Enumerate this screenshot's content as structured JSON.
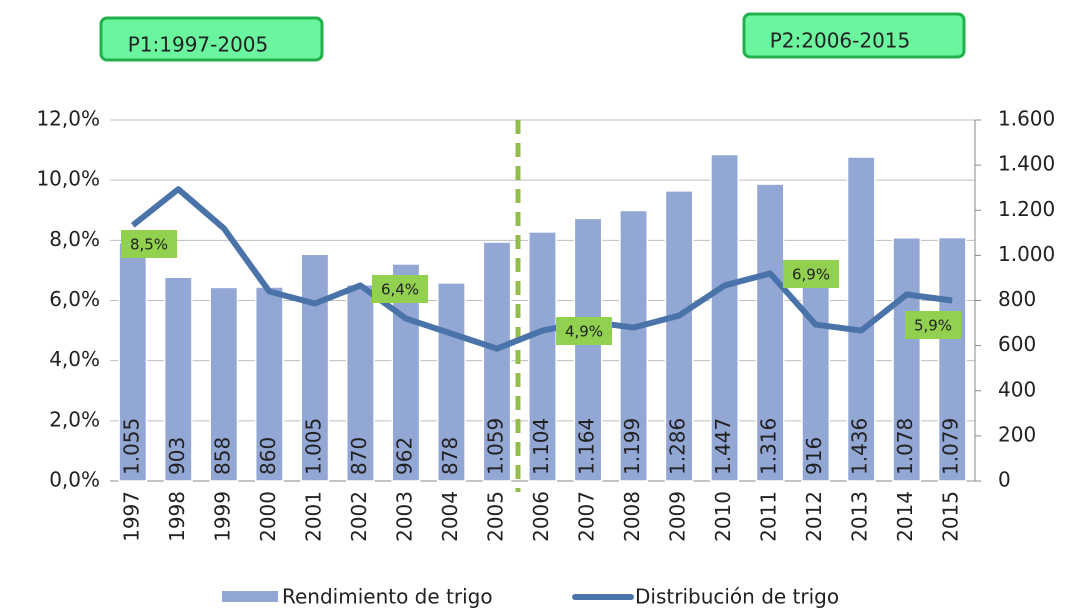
{
  "chart_data": {
    "type": "bar_line",
    "categories": [
      "1997",
      "1998",
      "1999",
      "2000",
      "2001",
      "2002",
      "2003",
      "2004",
      "2005",
      "2006",
      "2007",
      "2008",
      "2009",
      "2010",
      "2011",
      "2012",
      "2013",
      "2014",
      "2015"
    ],
    "series": [
      {
        "name": "Rendimiento de trigo",
        "color": "#92a7d3",
        "axis": "y2",
        "type": "bar",
        "values": [
          1055,
          903,
          858,
          860,
          1005,
          870,
          962,
          878,
          1059,
          1104,
          1164,
          1199,
          1286,
          1447,
          1316,
          916,
          1436,
          1078,
          1079
        ],
        "value_labels": [
          "1.055",
          "903",
          "858",
          "860",
          "1.005",
          "870",
          "962",
          "878",
          "1.059",
          "1.104",
          "1.164",
          "1.199",
          "1.286",
          "1.447",
          "1.316",
          "916",
          "1.436",
          "1.078",
          "1.079"
        ]
      },
      {
        "name": "Distribución de trigo",
        "color": "#4a73a9",
        "axis": "y",
        "type": "line",
        "values": [
          8.5,
          9.7,
          8.4,
          6.3,
          5.9,
          6.5,
          5.4,
          4.9,
          4.4,
          5.0,
          5.3,
          5.1,
          5.5,
          6.5,
          6.9,
          5.2,
          5.0,
          6.2,
          6.0
        ]
      }
    ],
    "ylim": [
      0,
      12
    ],
    "yticks": [
      {
        "value": 0,
        "label": "0,0%"
      },
      {
        "value": 2,
        "label": "2,0%"
      },
      {
        "value": 4,
        "label": "4,0%"
      },
      {
        "value": 6,
        "label": "6,0%"
      },
      {
        "value": 8,
        "label": "8,0%"
      },
      {
        "value": 10,
        "label": "10,0%"
      },
      {
        "value": 12,
        "label": "12,0%"
      }
    ],
    "y2lim": [
      0,
      1600
    ],
    "y2ticks": [
      0,
      200,
      400,
      600,
      800,
      {
        "value": 1000,
        "label": "1.000"
      },
      {
        "value": 1200,
        "label": "1.200"
      },
      {
        "value": 1400,
        "label": "1.400"
      },
      {
        "value": 1600,
        "label": "1.600"
      }
    ],
    "grid": true,
    "legend": "bottom",
    "annotations": [
      "8,5%",
      "6,4%",
      "4,9%",
      "6,9%",
      "5,9%"
    ],
    "periods": [
      "P1:1997-2005",
      "P2:2006-2015"
    ]
  }
}
